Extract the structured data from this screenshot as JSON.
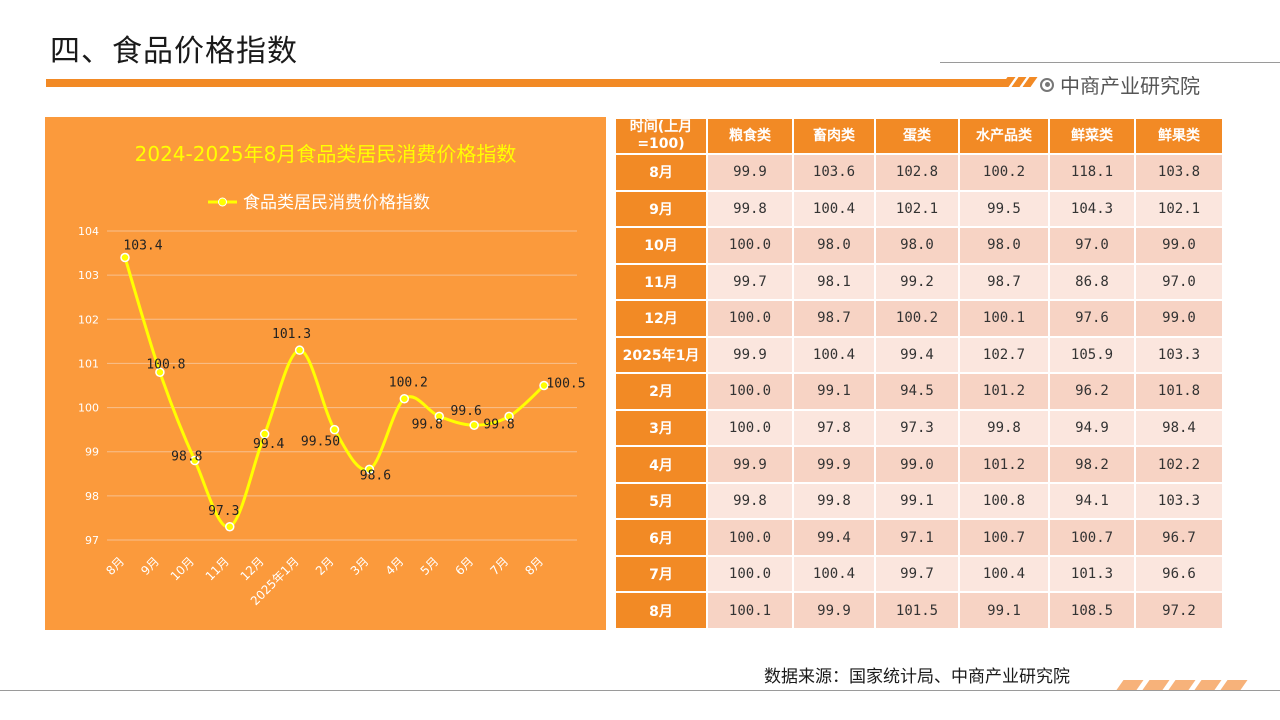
{
  "page_title": "四、食品价格指数",
  "brand": "中商产业研究院",
  "source": "数据来源：国家统计局、中商产业研究院",
  "colors": {
    "orange": "#f28a25",
    "panel": "#fb9a3c",
    "line": "#ffff00"
  },
  "chart_data": {
    "type": "line",
    "title": "2024-2025年8月食品类居民消费价格指数",
    "legend": "top",
    "categories": [
      "8月",
      "9月",
      "10月",
      "11月",
      "12月",
      "2025年1月",
      "2月",
      "3月",
      "4月",
      "5月",
      "6月",
      "7月",
      "8月"
    ],
    "series": [
      {
        "name": "食品类居民消费价格指数",
        "values": [
          103.4,
          100.8,
          98.8,
          97.3,
          99.4,
          101.3,
          99.5,
          98.6,
          100.2,
          99.8,
          99.6,
          99.8,
          100.5
        ],
        "labels": [
          "103.4",
          "100.8",
          "98.8",
          "97.3",
          "99.4",
          "101.3",
          "99.50",
          "98.6",
          "100.2",
          "99.8",
          "99.6",
          "99.8",
          "100.5"
        ]
      }
    ],
    "ylim": [
      97,
      104
    ],
    "yticks": [
      "97",
      "98",
      "99",
      "100",
      "101",
      "102",
      "103",
      "104"
    ],
    "grid": true
  },
  "table": {
    "headers": [
      "时间(上月=100)",
      "粮食类",
      "畜肉类",
      "蛋类",
      "水产品类",
      "鲜菜类",
      "鲜果类"
    ],
    "rows": [
      {
        "label": "8月",
        "values": [
          "99.9",
          "103.6",
          "102.8",
          "100.2",
          "118.1",
          "103.8"
        ]
      },
      {
        "label": "9月",
        "values": [
          "99.8",
          "100.4",
          "102.1",
          "99.5",
          "104.3",
          "102.1"
        ]
      },
      {
        "label": "10月",
        "values": [
          "100.0",
          "98.0",
          "98.0",
          "98.0",
          "97.0",
          "99.0"
        ]
      },
      {
        "label": "11月",
        "values": [
          "99.7",
          "98.1",
          "99.2",
          "98.7",
          "86.8",
          "97.0"
        ]
      },
      {
        "label": "12月",
        "values": [
          "100.0",
          "98.7",
          "100.2",
          "100.1",
          "97.6",
          "99.0"
        ]
      },
      {
        "label": "2025年1月",
        "values": [
          "99.9",
          "100.4",
          "99.4",
          "102.7",
          "105.9",
          "103.3"
        ]
      },
      {
        "label": "2月",
        "values": [
          "100.0",
          "99.1",
          "94.5",
          "101.2",
          "96.2",
          "101.8"
        ]
      },
      {
        "label": "3月",
        "values": [
          "100.0",
          "97.8",
          "97.3",
          "99.8",
          "94.9",
          "98.4"
        ]
      },
      {
        "label": "4月",
        "values": [
          "99.9",
          "99.9",
          "99.0",
          "101.2",
          "98.2",
          "102.2"
        ]
      },
      {
        "label": "5月",
        "values": [
          "99.8",
          "99.8",
          "99.1",
          "100.8",
          "94.1",
          "103.3"
        ]
      },
      {
        "label": "6月",
        "values": [
          "100.0",
          "99.4",
          "97.1",
          "100.7",
          "100.7",
          "96.7"
        ]
      },
      {
        "label": "7月",
        "values": [
          "100.0",
          "100.4",
          "99.7",
          "100.4",
          "101.3",
          "96.6"
        ]
      },
      {
        "label": "8月",
        "values": [
          "100.1",
          "99.9",
          "101.5",
          "99.1",
          "108.5",
          "97.2"
        ]
      }
    ]
  }
}
